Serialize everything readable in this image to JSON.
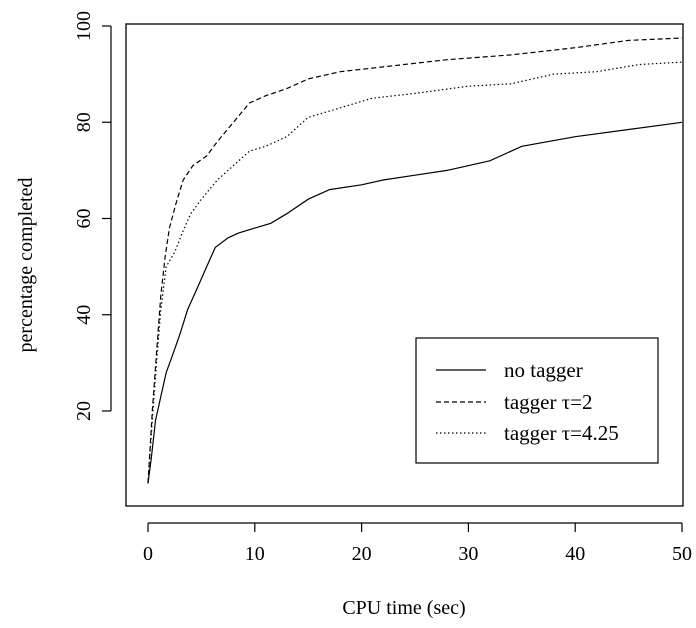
{
  "chart_data": {
    "type": "line",
    "title": "",
    "xlabel": "CPU time (sec)",
    "ylabel": "percentage completed",
    "xlim": [
      0,
      50
    ],
    "ylim": [
      0,
      100
    ],
    "x_ticks": [
      0,
      10,
      20,
      30,
      40,
      50
    ],
    "y_ticks": [
      20,
      40,
      60,
      80,
      100
    ],
    "grid": false,
    "legend_position": "bottom-right",
    "series": [
      {
        "name": "no tagger",
        "line_style": "solid",
        "color": "#000000",
        "points": [
          [
            0,
            5
          ],
          [
            0.3,
            10
          ],
          [
            0.7,
            18
          ],
          [
            1.2,
            23
          ],
          [
            1.7,
            28
          ],
          [
            2.2,
            31
          ],
          [
            3,
            36
          ],
          [
            3.7,
            41
          ],
          [
            4.5,
            45
          ],
          [
            5.5,
            50
          ],
          [
            6.3,
            54
          ],
          [
            7.5,
            56
          ],
          [
            8.5,
            57
          ],
          [
            10,
            58
          ],
          [
            11.5,
            59
          ],
          [
            13,
            61
          ],
          [
            15,
            64
          ],
          [
            17,
            66
          ],
          [
            20,
            67
          ],
          [
            22,
            68
          ],
          [
            25,
            69
          ],
          [
            28,
            70
          ],
          [
            32,
            72
          ],
          [
            35,
            75
          ],
          [
            40,
            77
          ],
          [
            45,
            78.5
          ],
          [
            50,
            80
          ]
        ]
      },
      {
        "name": "tagger τ=2",
        "line_style": "dashed",
        "color": "#000000",
        "points": [
          [
            0,
            5
          ],
          [
            0.4,
            20
          ],
          [
            0.8,
            32
          ],
          [
            1.2,
            44
          ],
          [
            1.6,
            52
          ],
          [
            2,
            58
          ],
          [
            2.6,
            63
          ],
          [
            3.3,
            68
          ],
          [
            4.2,
            71
          ],
          [
            5.5,
            73
          ],
          [
            6.5,
            76
          ],
          [
            8,
            80
          ],
          [
            9.5,
            84
          ],
          [
            11,
            85.5
          ],
          [
            13,
            87
          ],
          [
            15,
            89
          ],
          [
            18,
            90.5
          ],
          [
            22,
            91.5
          ],
          [
            28,
            93
          ],
          [
            34,
            94
          ],
          [
            40,
            95.5
          ],
          [
            45,
            97
          ],
          [
            50,
            97.5
          ]
        ]
      },
      {
        "name": "tagger τ=4.25",
        "line_style": "dotted",
        "color": "#000000",
        "points": [
          [
            0,
            5
          ],
          [
            0.4,
            18
          ],
          [
            0.8,
            30
          ],
          [
            1.2,
            41
          ],
          [
            1.7,
            50
          ],
          [
            2.5,
            53
          ],
          [
            3.2,
            57
          ],
          [
            4,
            61
          ],
          [
            5,
            64
          ],
          [
            6.5,
            68
          ],
          [
            8,
            71
          ],
          [
            9.5,
            74
          ],
          [
            11,
            75
          ],
          [
            13,
            77
          ],
          [
            15,
            81
          ],
          [
            18,
            83
          ],
          [
            21,
            85
          ],
          [
            25,
            86
          ],
          [
            30,
            87.5
          ],
          [
            34,
            88
          ],
          [
            38,
            90
          ],
          [
            42,
            90.5
          ],
          [
            46,
            92
          ],
          [
            50,
            92.5
          ]
        ]
      }
    ]
  }
}
